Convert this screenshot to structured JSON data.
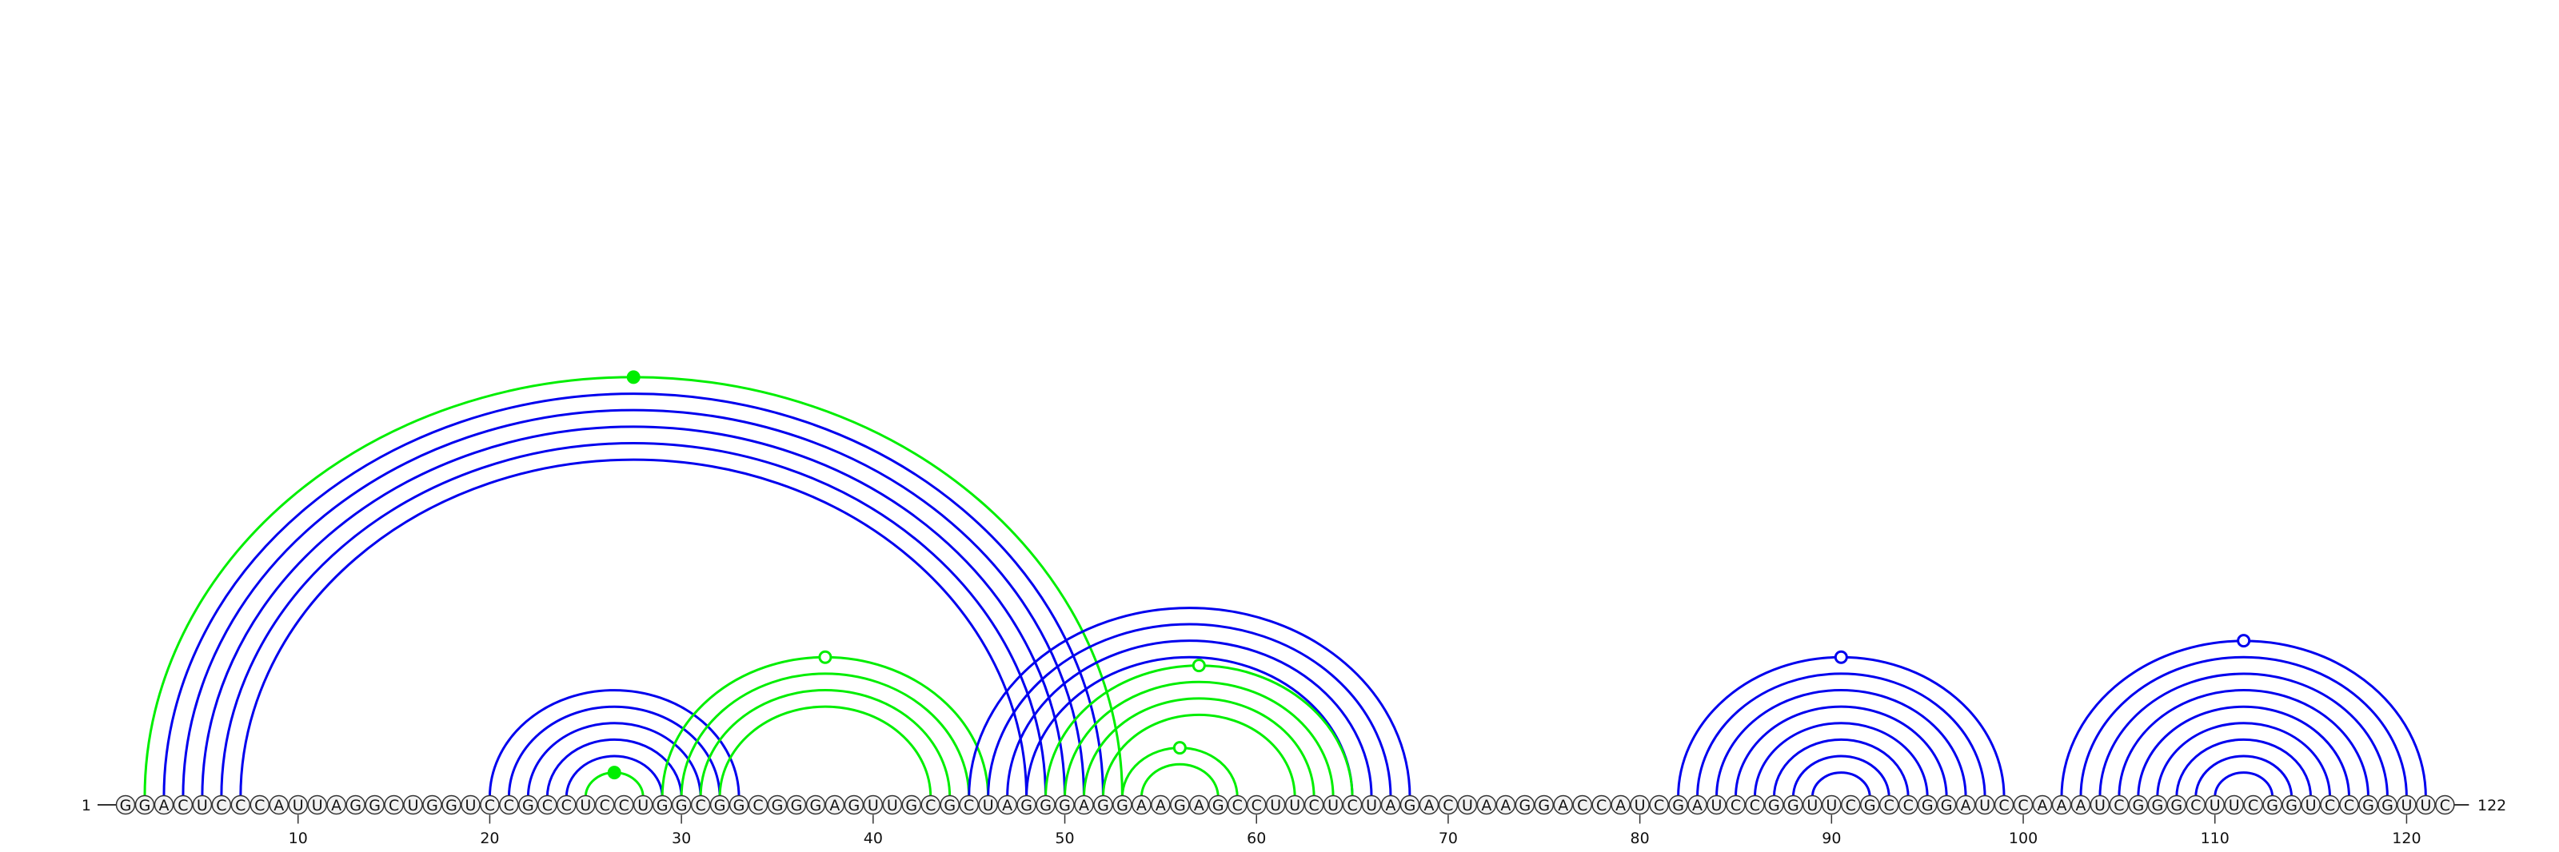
{
  "diagram": {
    "start_label": "1",
    "end_label": "122",
    "sequence": "GGACUCCCAUUAGGCUGGUCCGCCUCCUGGCGGCGGGAGUUGCGCUAGGGAGGAAGAGCCUUCUCUAGACUAAGGACCAUCGAUCCGGUUCGCCGGAUCCAAAUCGGGCUUCGGUCCGGUUC",
    "tick_labels": [
      "10",
      "20",
      "30",
      "40",
      "50",
      "60",
      "70",
      "80",
      "90",
      "100",
      "110",
      "120"
    ],
    "colors": {
      "blue": "#0000ee",
      "green": "#00ee00",
      "nucleotide_fill": "#f2f2f2",
      "nucleotide_stroke": "#333333"
    },
    "arc_groups": [
      {
        "color": "blue",
        "pairs": [
          [
            3,
            52
          ],
          [
            4,
            51
          ],
          [
            5,
            50
          ],
          [
            6,
            49
          ],
          [
            7,
            48
          ]
        ]
      },
      {
        "color": "green",
        "pairs": [
          [
            2,
            53
          ]
        ],
        "marker": "filled"
      },
      {
        "color": "blue",
        "pairs": [
          [
            20,
            33
          ],
          [
            21,
            32
          ],
          [
            22,
            31
          ],
          [
            23,
            30
          ],
          [
            24,
            29
          ]
        ]
      },
      {
        "color": "green",
        "pairs": [
          [
            25,
            28
          ]
        ],
        "marker": "filled"
      },
      {
        "color": "green",
        "pairs": [
          [
            29,
            46
          ],
          [
            30,
            45
          ],
          [
            31,
            44
          ],
          [
            32,
            43
          ]
        ],
        "marker": "open"
      },
      {
        "color": "blue",
        "pairs": [
          [
            45,
            68
          ],
          [
            46,
            67
          ],
          [
            47,
            66
          ],
          [
            48,
            65
          ]
        ]
      },
      {
        "color": "green",
        "pairs": [
          [
            49,
            65
          ],
          [
            50,
            64
          ],
          [
            51,
            63
          ],
          [
            52,
            62
          ]
        ],
        "marker": "open"
      },
      {
        "color": "green",
        "pairs": [
          [
            53,
            59
          ],
          [
            54,
            58
          ]
        ],
        "marker": "open"
      },
      {
        "color": "blue",
        "pairs": [
          [
            82,
            99
          ],
          [
            83,
            98
          ],
          [
            84,
            97
          ],
          [
            85,
            96
          ],
          [
            86,
            95
          ],
          [
            87,
            94
          ],
          [
            88,
            93
          ],
          [
            89,
            92
          ]
        ],
        "marker": "open"
      },
      {
        "color": "blue",
        "pairs": [
          [
            102,
            121
          ],
          [
            103,
            120
          ],
          [
            104,
            119
          ],
          [
            105,
            118
          ],
          [
            106,
            117
          ],
          [
            107,
            116
          ],
          [
            108,
            115
          ],
          [
            109,
            114
          ],
          [
            110,
            113
          ]
        ],
        "marker": "open"
      }
    ]
  }
}
